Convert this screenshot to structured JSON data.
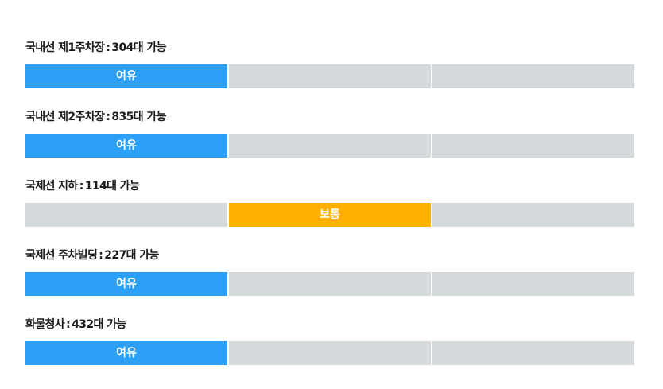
{
  "status_labels": {
    "relaxed": "여유",
    "normal": "보통",
    "congested": ""
  },
  "colors": {
    "relaxed": "#2c9ff7",
    "normal": "#ffb000",
    "inactive": "#d4d9dc"
  },
  "lots": [
    {
      "name": "국내선 제1주차장",
      "separator": ":",
      "available": "304대 가능",
      "status": "relaxed"
    },
    {
      "name": "국내선 제2주차장",
      "separator": ":",
      "available": "835대 가능",
      "status": "relaxed"
    },
    {
      "name": "국제선 지하",
      "separator": ":",
      "available": "114대 가능",
      "status": "normal"
    },
    {
      "name": "국제선 주차빌딩",
      "separator": ":",
      "available": "227대 가능",
      "status": "relaxed"
    },
    {
      "name": "화물청사",
      "separator": ":",
      "available": "432대 가능",
      "status": "relaxed"
    }
  ]
}
